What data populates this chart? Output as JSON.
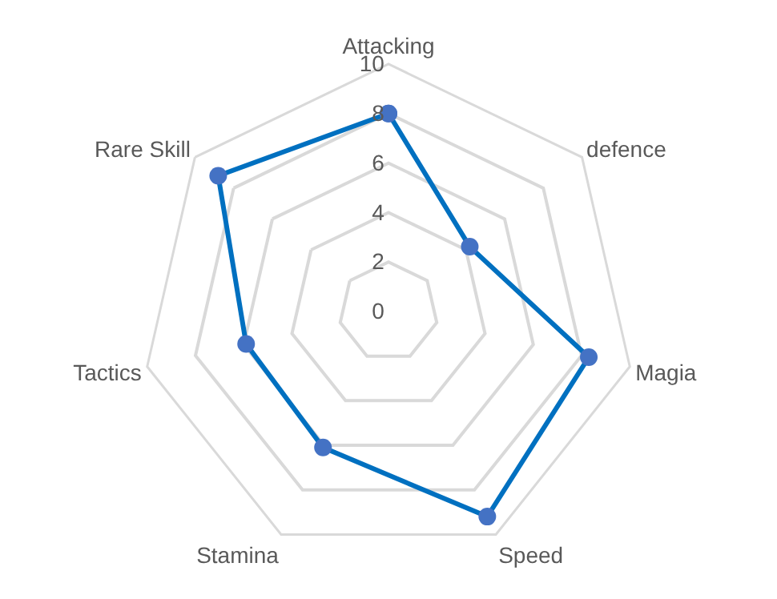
{
  "chart_data": {
    "type": "radar",
    "categories": [
      "Attacking",
      "defence",
      "Magia",
      "Speed",
      "Stamina",
      "Tactics",
      "Rare Skill"
    ],
    "series": [
      {
        "color": "#0070c0",
        "values": [
          8.0,
          4.2,
          8.3,
          9.2,
          6.1,
          5.9,
          8.8
        ]
      }
    ],
    "ylim": [
      0,
      10
    ],
    "yticks": [
      0,
      2,
      4,
      6,
      8,
      10
    ],
    "grid": true,
    "marker": "circle",
    "line_style": "solid"
  }
}
